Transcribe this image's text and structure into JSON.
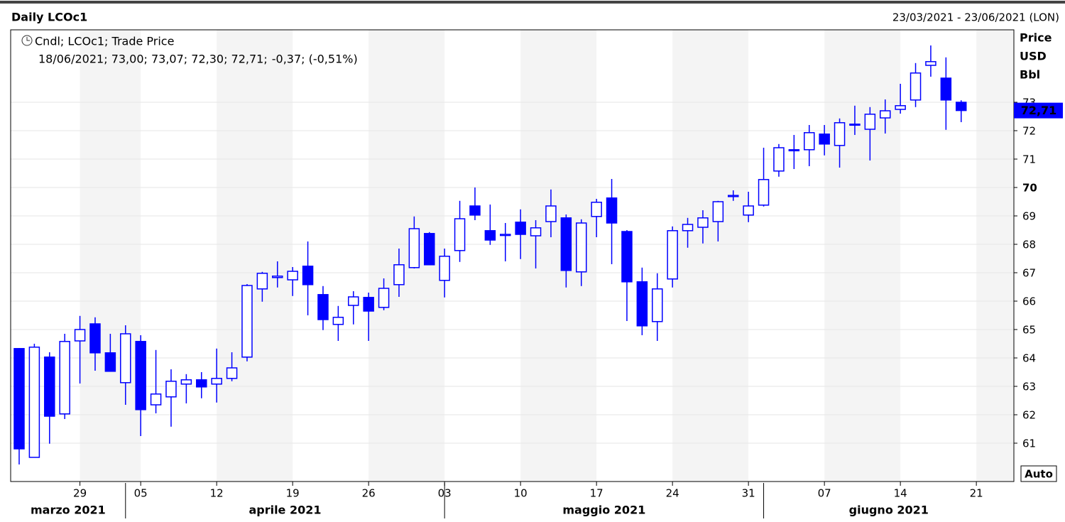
{
  "chart_data": {
    "type": "candlestick",
    "title": "Daily LCOc1",
    "date_range": "23/03/2021 - 23/06/2021 (LON)",
    "legend": "Cndl; LCOc1; Trade Price",
    "info": "18/06/2021; 73,00; 73,07; 72,30; 72,71;",
    "change": "-0,37; (-0,51%)",
    "axis_labels": [
      "Price",
      "USD",
      "Bbl"
    ],
    "scale_mode": "Auto",
    "last_label": "72,71",
    "color": "#0000ff",
    "categories": [
      "23/03/2021",
      "24/03/2021",
      "25/03/2021",
      "26/03/2021",
      "29/03/2021",
      "30/03/2021",
      "31/03/2021",
      "01/04/2021",
      "05/04/2021",
      "06/04/2021",
      "07/04/2021",
      "08/04/2021",
      "09/04/2021",
      "12/04/2021",
      "13/04/2021",
      "14/04/2021",
      "15/04/2021",
      "16/04/2021",
      "19/04/2021",
      "20/04/2021",
      "21/04/2021",
      "22/04/2021",
      "23/04/2021",
      "26/04/2021",
      "27/04/2021",
      "28/04/2021",
      "29/04/2021",
      "30/04/2021",
      "03/05/2021",
      "04/05/2021",
      "05/05/2021",
      "06/05/2021",
      "07/05/2021",
      "10/05/2021",
      "11/05/2021",
      "12/05/2021",
      "13/05/2021",
      "14/05/2021",
      "17/05/2021",
      "18/05/2021",
      "19/05/2021",
      "20/05/2021",
      "21/05/2021",
      "24/05/2021",
      "25/05/2021",
      "26/05/2021",
      "27/05/2021",
      "28/05/2021",
      "31/05/2021",
      "01/06/2021",
      "02/06/2021",
      "03/06/2021",
      "04/06/2021",
      "07/06/2021",
      "08/06/2021",
      "09/06/2021",
      "10/06/2021",
      "11/06/2021",
      "14/06/2021",
      "15/06/2021",
      "16/06/2021",
      "17/06/2021",
      "18/06/2021"
    ],
    "open": [
      64.33,
      60.5,
      64.03,
      62.03,
      64.6,
      65.2,
      64.18,
      63.13,
      64.58,
      62.35,
      62.63,
      63.08,
      63.23,
      63.08,
      63.28,
      64.03,
      66.43,
      66.83,
      66.75,
      67.23,
      66.23,
      65.18,
      65.85,
      66.13,
      65.78,
      66.58,
      67.18,
      68.38,
      66.73,
      67.78,
      69.35,
      68.48,
      68.31,
      68.78,
      68.3,
      68.8,
      68.93,
      67.03,
      68.98,
      69.63,
      68.45,
      66.68,
      65.28,
      66.78,
      68.48,
      68.6,
      68.8,
      69.68,
      69.03,
      69.38,
      70.58,
      71.3,
      71.33,
      71.88,
      71.48,
      72.2,
      72.05,
      72.45,
      72.75,
      73.08,
      74.3,
      73.85,
      73.0
    ],
    "high": [
      64.35,
      64.5,
      64.2,
      64.85,
      65.48,
      65.43,
      64.85,
      65.15,
      64.8,
      64.28,
      63.6,
      63.43,
      63.5,
      64.33,
      64.2,
      66.6,
      67.03,
      67.4,
      67.2,
      68.1,
      66.53,
      65.83,
      66.35,
      66.3,
      66.8,
      67.85,
      68.98,
      68.43,
      67.85,
      69.53,
      70.0,
      69.4,
      68.75,
      69.23,
      68.85,
      69.93,
      69.05,
      68.88,
      69.6,
      70.3,
      68.5,
      67.18,
      66.98,
      68.63,
      68.93,
      69.2,
      69.53,
      69.9,
      69.85,
      71.4,
      71.53,
      71.85,
      72.2,
      72.2,
      72.43,
      72.88,
      72.83,
      73.1,
      73.65,
      74.38,
      75.0,
      74.58,
      73.07
    ],
    "low": [
      60.25,
      60.5,
      60.98,
      61.85,
      63.1,
      63.55,
      63.53,
      62.35,
      61.25,
      62.05,
      61.58,
      62.4,
      62.58,
      62.43,
      63.18,
      63.88,
      65.98,
      66.48,
      66.18,
      65.5,
      64.98,
      64.6,
      65.18,
      64.6,
      65.68,
      66.15,
      67.15,
      67.28,
      66.13,
      67.38,
      68.85,
      67.98,
      67.4,
      67.48,
      67.15,
      68.25,
      66.48,
      66.53,
      68.25,
      67.3,
      65.3,
      64.8,
      64.6,
      66.48,
      67.88,
      68.03,
      68.1,
      69.53,
      68.78,
      69.33,
      70.38,
      70.65,
      70.75,
      71.13,
      70.7,
      71.85,
      70.95,
      71.9,
      72.6,
      72.83,
      73.9,
      72.03,
      72.3
    ],
    "close": [
      60.8,
      64.38,
      61.95,
      64.58,
      65.0,
      64.18,
      63.53,
      64.85,
      62.18,
      62.73,
      63.18,
      63.23,
      62.98,
      63.28,
      63.65,
      66.55,
      66.98,
      66.88,
      67.05,
      66.58,
      65.35,
      65.43,
      66.15,
      65.65,
      66.45,
      67.28,
      68.55,
      67.28,
      67.58,
      68.9,
      69.03,
      68.15,
      68.35,
      68.35,
      68.58,
      69.35,
      67.08,
      68.75,
      69.48,
      68.75,
      66.68,
      65.13,
      66.43,
      68.48,
      68.7,
      68.93,
      69.5,
      69.72,
      69.35,
      70.28,
      71.4,
      71.33,
      71.93,
      71.53,
      72.28,
      72.23,
      72.58,
      72.7,
      72.88,
      74.03,
      74.43,
      73.08,
      72.71
    ],
    "xlim": [
      -0.56,
      65.47
    ],
    "xticks": [
      {
        "value": 4,
        "label": "29"
      },
      {
        "value": 8,
        "label": "05"
      },
      {
        "value": 13,
        "label": "12"
      },
      {
        "value": 18,
        "label": "19"
      },
      {
        "value": 23,
        "label": "26"
      },
      {
        "value": 28,
        "label": "03"
      },
      {
        "value": 33,
        "label": "10"
      },
      {
        "value": 38,
        "label": "17"
      },
      {
        "value": 43,
        "label": "24"
      },
      {
        "value": 48,
        "label": "31"
      },
      {
        "value": 53,
        "label": "07"
      },
      {
        "value": 58,
        "label": "14"
      },
      {
        "value": 63,
        "label": "21"
      }
    ],
    "months": [
      {
        "label": "marzo 2021",
        "start": 0
      },
      {
        "label": "aprile 2021",
        "start": 7
      },
      {
        "label": "maggio 2021",
        "start": 28
      },
      {
        "label": "giugno 2021",
        "start": 49
      }
    ],
    "ylim": [
      59.65,
      75.55
    ],
    "yticks": [
      61,
      62,
      63,
      64,
      65,
      66,
      67,
      68,
      69,
      70,
      71,
      72,
      73
    ],
    "grid": true
  }
}
